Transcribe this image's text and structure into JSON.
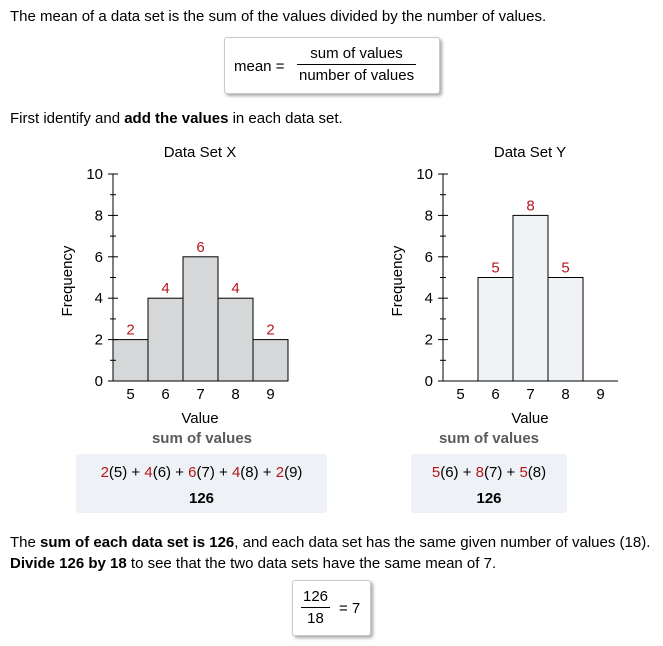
{
  "intro": "The mean of a data set is the sum of the values divided by the number of values.",
  "formula": {
    "lhs": "mean =",
    "numerator": "sum of values",
    "denominator": "number of values"
  },
  "step1": {
    "pre": "First identify and ",
    "bold": "add the values",
    "post": " in each data set."
  },
  "sum_label": "sum of values",
  "chart_data": [
    {
      "type": "bar",
      "title": "Data Set X",
      "xlabel": "Value",
      "ylabel": "Frequency",
      "categories": [
        "5",
        "6",
        "7",
        "8",
        "9"
      ],
      "values": [
        2,
        4,
        6,
        4,
        2
      ],
      "data_labels": [
        "2",
        "4",
        "6",
        "4",
        "2"
      ],
      "ylim": [
        0,
        10
      ],
      "yticks": [
        "0",
        "2",
        "4",
        "6",
        "8",
        "10"
      ],
      "bar_color": "#d5d7d8",
      "label_color": "#b5161b"
    },
    {
      "type": "bar",
      "title": "Data Set Y",
      "xlabel": "Value",
      "ylabel": "Frequency",
      "categories": [
        "5",
        "6",
        "7",
        "8",
        "9"
      ],
      "values": [
        0,
        5,
        8,
        5,
        0
      ],
      "data_labels": [
        "",
        "5",
        "8",
        "5",
        ""
      ],
      "ylim": [
        0,
        10
      ],
      "yticks": [
        "0",
        "2",
        "4",
        "6",
        "8",
        "10"
      ],
      "bar_color": "#f0f3f6",
      "label_color": "#b5161b"
    }
  ],
  "calc_x": {
    "parts": [
      {
        "coef": "2",
        "val": "(5)"
      },
      {
        "coef": "4",
        "val": "(6)"
      },
      {
        "coef": "6",
        "val": "(7)"
      },
      {
        "coef": "4",
        "val": "(8)"
      },
      {
        "coef": "2",
        "val": "(9)"
      }
    ],
    "total": "126"
  },
  "calc_y": {
    "parts": [
      {
        "coef": "5",
        "val": "(6)"
      },
      {
        "coef": "8",
        "val": "(7)"
      },
      {
        "coef": "5",
        "val": "(8)"
      }
    ],
    "total": "126"
  },
  "conclusion": {
    "t1": "The ",
    "b1": "sum of each data set is 126",
    "t2": ", and each data set has the same given number of values (18). ",
    "b2": "Divide 126 by 18",
    "t3": " to see that the two data sets have the same mean of 7."
  },
  "result": {
    "numerator": "126",
    "denominator": "18",
    "rhs": "= 7"
  },
  "colors": {
    "accent_red": "#b5161b",
    "calc_bg": "#eef2f6",
    "sum_label": "#5a5a5a"
  }
}
